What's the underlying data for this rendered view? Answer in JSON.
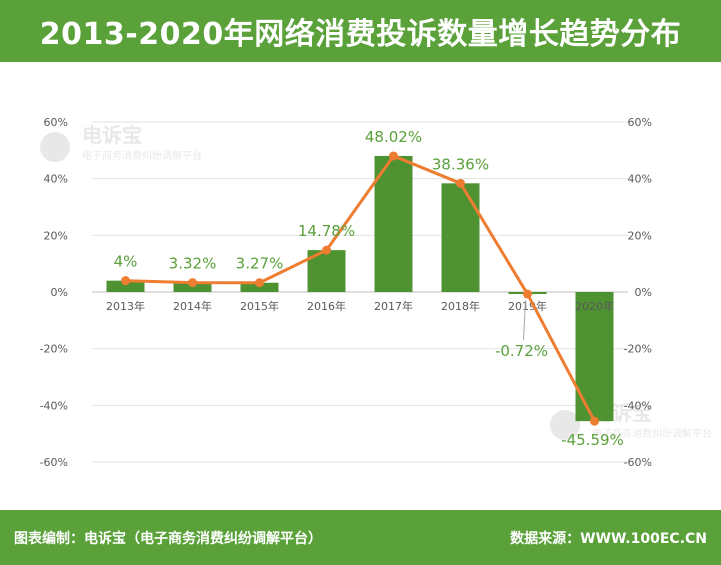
{
  "header": {
    "title": "2013-2020年网络消费投诉数量增长趋势分布"
  },
  "footer": {
    "left": "图表编制：电诉宝（电子商务消费纠纷调解平台）",
    "right": "数据来源：WWW.100EC.CN"
  },
  "watermark": {
    "brand": "电诉宝",
    "subtitle": "电子商务消费纠纷调解平台"
  },
  "colors": {
    "header_bg": "#5aa13a",
    "bar": "#4f9231",
    "line": "#ed7d31",
    "label": "#5aa13a"
  },
  "chart_data": {
    "type": "bar+line",
    "categories": [
      "2013年",
      "2014年",
      "2015年",
      "2016年",
      "2017年",
      "2018年",
      "2019年",
      "2020年"
    ],
    "values": [
      4,
      3.32,
      3.27,
      14.78,
      48.02,
      38.36,
      -0.72,
      -45.59
    ],
    "data_labels": [
      "4%",
      "3.32%",
      "3.27%",
      "14.78%",
      "48.02%",
      "38.36%",
      "-0.72%",
      "-45.59%"
    ],
    "ylim": [
      -60,
      60
    ],
    "yticks": [
      "60%",
      "40%",
      "20%",
      "0%",
      "-20%",
      "-40%",
      "-60%"
    ],
    "ytick_values": [
      60,
      40,
      20,
      0,
      -20,
      -40,
      -60
    ],
    "grid": true,
    "secondary_axis": true
  }
}
